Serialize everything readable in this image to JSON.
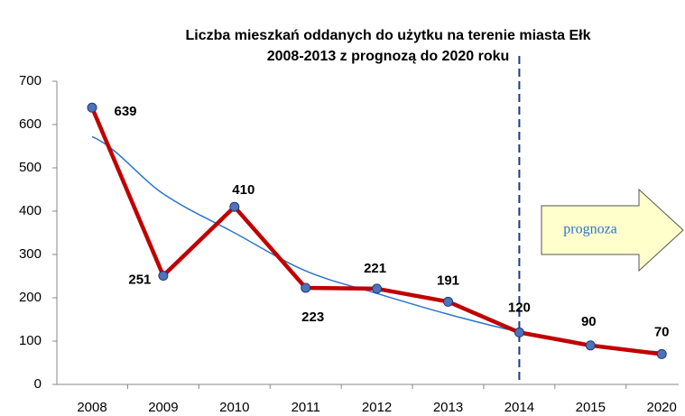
{
  "chart_data": {
    "type": "line",
    "title": [
      "Liczba mieszkań oddanych do użytku na terenie miasta Ełk",
      "2008-2013  z prognozą  do 2020 roku"
    ],
    "categories": [
      "2008",
      "2009",
      "2010",
      "2011",
      "2012",
      "2013",
      "2014",
      "2015",
      "2020"
    ],
    "series": [
      {
        "color": "#c00000",
        "marker_color": "#4f72b8",
        "values": [
          639,
          251,
          410,
          223,
          221,
          191,
          120,
          90,
          70
        ]
      }
    ],
    "trendline": {
      "color": "#2e75c8",
      "values": [
        572,
        440,
        350,
        262,
        210,
        162,
        121,
        90,
        75
      ]
    },
    "ylim": [
      0,
      700
    ],
    "yticks": [
      0,
      100,
      200,
      300,
      400,
      500,
      600,
      700
    ],
    "grid": false,
    "forecast_start": "2014",
    "annotation": "prognoza"
  }
}
